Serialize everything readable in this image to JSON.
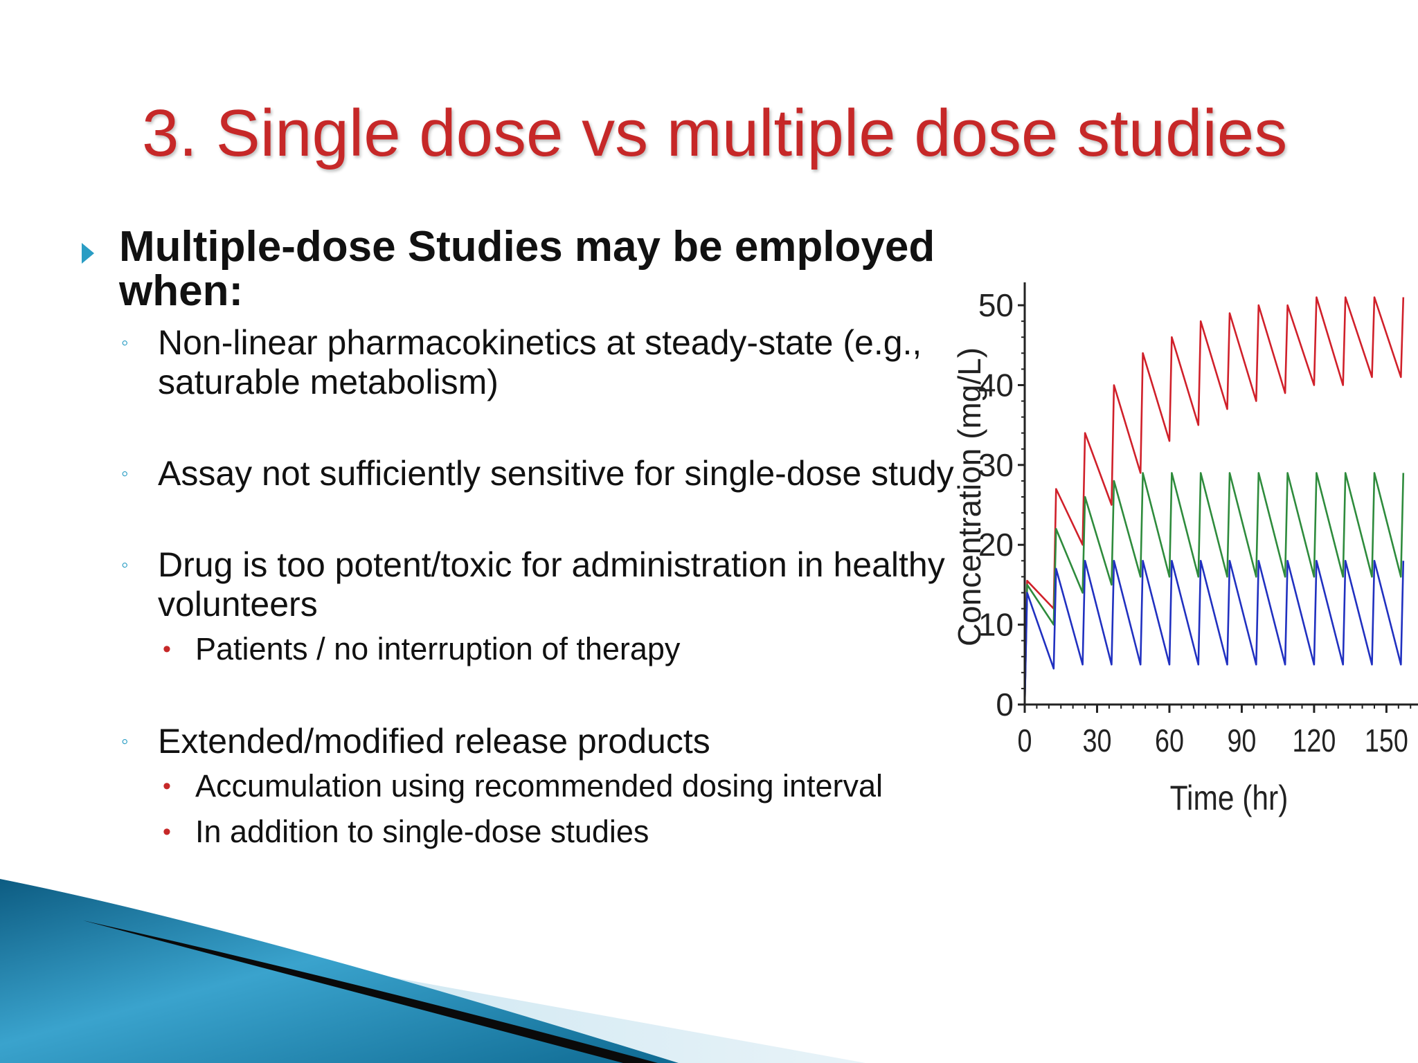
{
  "title": "3. Single dose vs multiple dose studies",
  "main_bullet": {
    "text": "Multiple-dose Studies may be employed when:",
    "sub": [
      {
        "text": "Non-linear pharmacokinetics at steady-state (e.g., saturable metabolism)"
      },
      {
        "text": "Assay not sufficiently sensitive for single-dose study"
      },
      {
        "text": "Drug is too potent/toxic for administration in healthy volunteers",
        "sub": [
          "Patients / no interruption of therapy"
        ]
      },
      {
        "text": "Extended/modified release products",
        "sub": [
          "Accumulation using recommended dosing interval",
          "In addition to single-dose studies"
        ]
      }
    ]
  },
  "chart_data": {
    "type": "line",
    "title": "",
    "xlabel": "Time (hr)",
    "ylabel": "Concentration (mg/L)",
    "xlim": [
      0,
      160
    ],
    "ylim": [
      0,
      50
    ],
    "xticks": [
      0,
      30,
      60,
      90,
      120,
      150
    ],
    "yticks": [
      0,
      10,
      20,
      30,
      40,
      50
    ],
    "grid": false,
    "series": [
      {
        "color": "#d0202a",
        "x": [
          0,
          1,
          12,
          13,
          24,
          25,
          36,
          37,
          48,
          49,
          60,
          61,
          72,
          73,
          84,
          85,
          96,
          97,
          108,
          109,
          120,
          121,
          132,
          133,
          144,
          145,
          156,
          157
        ],
        "y": [
          0,
          15.5,
          12,
          27,
          20,
          34,
          25,
          40,
          29,
          44,
          33,
          46,
          35,
          48,
          37,
          49,
          38,
          50,
          39,
          50,
          40,
          51,
          40,
          51,
          41,
          51,
          41,
          51
        ]
      },
      {
        "color": "#2e8b3c",
        "x": [
          0,
          1,
          12,
          13,
          24,
          25,
          36,
          37,
          48,
          49,
          60,
          61,
          72,
          73,
          84,
          85,
          96,
          97,
          108,
          109,
          120,
          121,
          132,
          133,
          144,
          145,
          156,
          157
        ],
        "y": [
          0,
          15,
          10,
          22,
          14,
          26,
          15,
          28,
          16,
          29,
          16,
          29,
          16,
          29,
          16,
          29,
          16,
          29,
          16,
          29,
          16,
          29,
          16,
          29,
          16,
          29,
          16,
          29
        ]
      },
      {
        "color": "#2030c0",
        "x": [
          0,
          1,
          12,
          13,
          24,
          25,
          36,
          37,
          48,
          49,
          60,
          61,
          72,
          73,
          84,
          85,
          96,
          97,
          108,
          109,
          120,
          121,
          132,
          133,
          144,
          145,
          156,
          157
        ],
        "y": [
          0,
          14,
          4.5,
          17,
          5,
          18,
          5,
          18,
          5,
          18,
          5,
          18,
          5,
          18,
          5,
          18,
          5,
          18,
          5,
          18,
          5,
          18,
          5,
          18,
          5,
          18,
          5,
          18
        ]
      }
    ]
  }
}
